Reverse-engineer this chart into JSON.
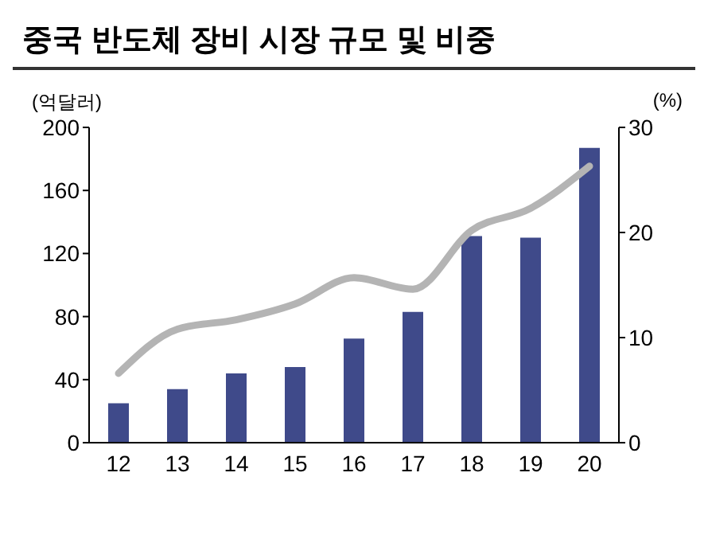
{
  "chart_data": {
    "type": "bar",
    "title": "중국 반도체 장비 시장 규모 및 비중",
    "ylabel": "(억달러)",
    "y2label": "(%)",
    "categories": [
      "12",
      "13",
      "14",
      "15",
      "16",
      "17",
      "18",
      "19",
      "20"
    ],
    "series": [
      {
        "color": "#3f4a8a",
        "values": [
          25,
          34,
          44,
          48,
          66,
          83,
          131,
          130,
          187
        ]
      },
      {
        "type": "line",
        "axis": "y2",
        "color": "#b4b4b4",
        "values": [
          6.6,
          10.8,
          11.7,
          13.2,
          15.7,
          14.6,
          20.2,
          22.3,
          26.3
        ]
      }
    ],
    "ylim": [
      0,
      200
    ],
    "yticks": [
      0,
      40,
      80,
      120,
      160,
      200
    ],
    "y2lim": [
      0,
      30
    ],
    "y2ticks": [
      0,
      10,
      20,
      30
    ],
    "grid": false,
    "legend": false,
    "marker": "none",
    "line_style": "solid"
  }
}
